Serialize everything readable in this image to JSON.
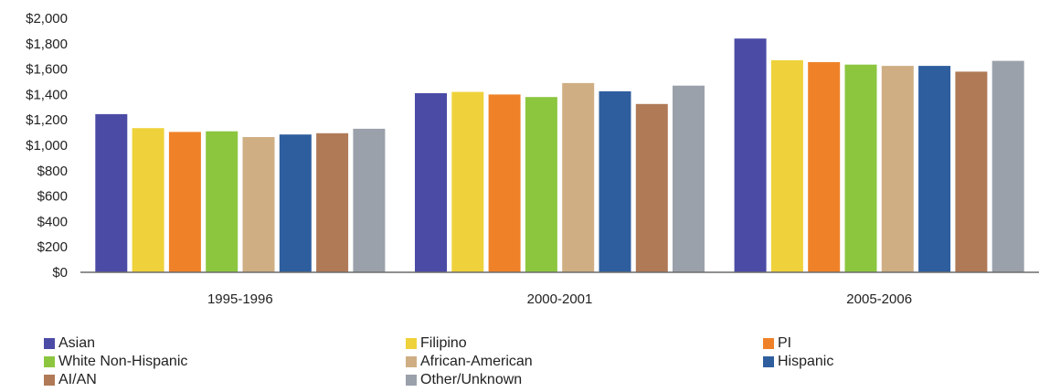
{
  "chart_data": {
    "type": "bar",
    "title": "",
    "xlabel": "",
    "ylabel": "",
    "ylim": [
      0,
      2000
    ],
    "yticks": [
      0,
      200,
      400,
      600,
      800,
      1000,
      1200,
      1400,
      1600,
      1800,
      2000
    ],
    "ytick_labels": [
      "$0",
      "$200",
      "$400",
      "$600",
      "$800",
      "$1,000",
      "$1,200",
      "$1,400",
      "$1,600",
      "$1,800",
      "$2,000"
    ],
    "grid": false,
    "legend_position": "bottom",
    "categories": [
      "1995-1996",
      "2000-2001",
      "2005-2006"
    ],
    "series": [
      {
        "name": "Asian",
        "color": "#4b4ba6",
        "values": [
          1245,
          1410,
          1840
        ]
      },
      {
        "name": "Filipino",
        "color": "#efd23b",
        "values": [
          1135,
          1420,
          1670
        ]
      },
      {
        "name": "PI",
        "color": "#ef8229",
        "values": [
          1105,
          1400,
          1655
        ]
      },
      {
        "name": "White Non-Hispanic",
        "color": "#8cc63f",
        "values": [
          1110,
          1380,
          1635
        ]
      },
      {
        "name": "African-American",
        "color": "#cfae83",
        "values": [
          1065,
          1490,
          1625
        ]
      },
      {
        "name": "Hispanic",
        "color": "#2e5e9e",
        "values": [
          1085,
          1425,
          1625
        ]
      },
      {
        "name": "AI/AN",
        "color": "#b07a57",
        "values": [
          1095,
          1325,
          1580
        ]
      },
      {
        "name": "Other/Unknown",
        "color": "#9ba1ab",
        "values": [
          1130,
          1470,
          1665
        ]
      }
    ]
  }
}
